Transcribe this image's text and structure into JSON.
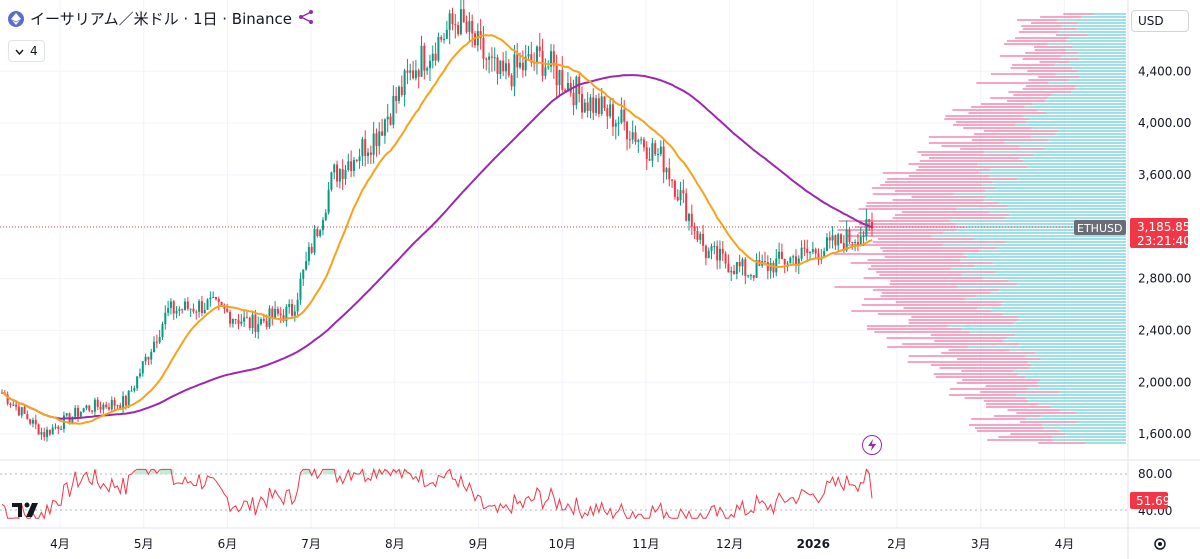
{
  "header": {
    "title": "イーサリアム／米ドル · 1日 · Binance",
    "indicator_count": "4"
  },
  "currency_selector": {
    "value": "USD"
  },
  "colors": {
    "up": "#089981",
    "down": "#f23645",
    "ma_fast": "#f7a21b",
    "ma_slow": "#9c27b0",
    "rsi": "#f23645",
    "vp_up": "#52c8d8",
    "vp_down": "#f06292"
  },
  "icons": {
    "coin": "ethereum-icon",
    "chevron": "chevron-down-icon",
    "strategy": "strategy-icon",
    "bolt": "lightning-icon",
    "settings": "gear-icon",
    "logo": "tradingview-logo"
  },
  "price_axis": {
    "ticks": [
      "4,400.00",
      "4,000.00",
      "3,600.00",
      "2,800.00",
      "2,400.00",
      "2,000.00",
      "1,600.00"
    ]
  },
  "current_price": {
    "symbol": "ETHUSD",
    "price": "3,185.85",
    "countdown": "23:21:40"
  },
  "rsi_axis": {
    "ticks": [
      "80.00",
      "40.00"
    ],
    "current": "51.69"
  },
  "time_axis": {
    "labels": [
      "4月",
      "5月",
      "6月",
      "7月",
      "8月",
      "9月",
      "10月",
      "11月",
      "12月",
      "2026",
      "2月",
      "3月",
      "4月"
    ]
  },
  "chart_data": {
    "type": "candlestick",
    "title": "イーサリアム／米ドル · 1日 · Binance",
    "x_range": [
      "2025-03-19",
      "2026-01-21"
    ],
    "ylim": [
      1400,
      4950
    ],
    "monthly_path": {
      "x": [
        "3月下旬",
        "4月",
        "4月中",
        "5月初",
        "5月中",
        "6月",
        "6月末",
        "7月",
        "7月中",
        "8月",
        "8月中",
        "8月末",
        "9月",
        "9月中",
        "10月",
        "10月中",
        "11月",
        "11月中",
        "12月",
        "12月中",
        "2026",
        "1月中"
      ],
      "close": [
        1920,
        1600,
        1800,
        1850,
        2550,
        2600,
        2450,
        2550,
        3600,
        3900,
        4450,
        4800,
        4350,
        4500,
        4200,
        4000,
        3700,
        3000,
        2850,
        2950,
        3050,
        3186
      ]
    },
    "rsi": {
      "current": 51.69,
      "upper": 80,
      "lower": 40
    }
  }
}
